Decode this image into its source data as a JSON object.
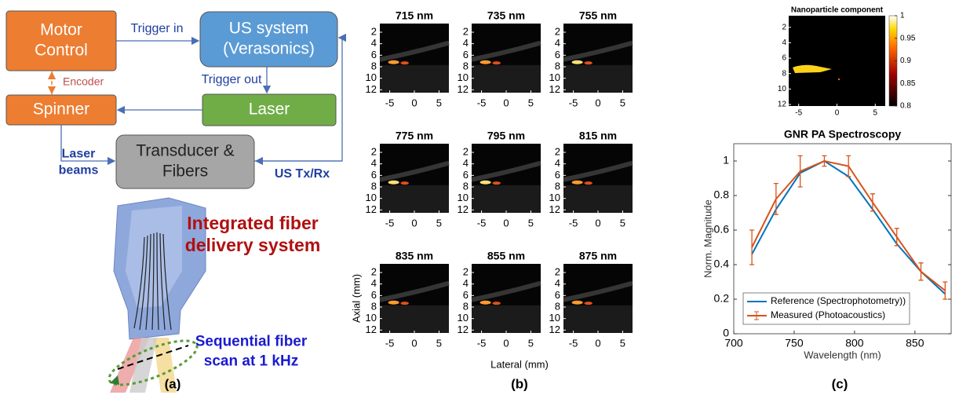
{
  "panel_labels": [
    "(a)",
    "(b)",
    "(c)"
  ],
  "diagram": {
    "nodes": [
      {
        "label": [
          "Motor",
          "Control"
        ]
      },
      {
        "label": [
          "US system",
          "(Verasonics)"
        ]
      },
      {
        "label": [
          "Spinner"
        ]
      },
      {
        "label": [
          "Laser"
        ]
      },
      {
        "label": [
          "Transducer &",
          "Fibers"
        ]
      }
    ],
    "edges": [
      {
        "label": [
          "Trigger in"
        ]
      },
      {
        "label": [
          "Trigger out"
        ]
      },
      {
        "label": [
          "Encoder"
        ]
      },
      {
        "label": [
          "Laser",
          "beams"
        ]
      },
      {
        "label": [
          "US Tx/Rx"
        ]
      }
    ],
    "captions": [
      [
        "Integrated fiber",
        "delivery system"
      ],
      [
        "Sequential fiber",
        "scan at 1 kHz"
      ]
    ]
  },
  "image_grid": {
    "titles": [
      "715 nm",
      "735 nm",
      "755 nm",
      "775 nm",
      "795 nm",
      "815 nm",
      "835 nm",
      "855 nm",
      "875 nm"
    ],
    "xlim": [
      -7,
      7
    ],
    "ylim": [
      0.5,
      12.5
    ],
    "xticks": [
      -5,
      0,
      5
    ],
    "yticks": [
      2,
      4,
      6,
      8,
      10,
      12
    ],
    "xlabel": "Lateral (mm)",
    "ylabel": "Axial (mm)"
  },
  "component_image": {
    "title": "Nanoparticle component",
    "xlim": [
      -6.3,
      6.3
    ],
    "ylim": [
      0.5,
      12.2
    ],
    "xticks": [
      -5,
      0,
      5
    ],
    "yticks": [
      2,
      4,
      6,
      8,
      10,
      12
    ],
    "colorbar": {
      "clim": [
        0.8,
        1
      ],
      "ticks": [
        0.8,
        0.85,
        0.9,
        0.95,
        1
      ]
    }
  },
  "chart_data": {
    "type": "line",
    "title": "GNR PA Spectroscopy",
    "x_label": "Wavelength (nm)",
    "y_label": "Norm. Magnitude",
    "x": [
      715,
      735,
      755,
      775,
      795,
      815,
      835,
      855,
      875
    ],
    "series": [
      {
        "name": "Reference (Spectrophotometry))",
        "color": "#0072bd",
        "values": [
          0.46,
          0.72,
          0.93,
          1.0,
          0.91,
          0.72,
          0.52,
          0.36,
          0.23
        ]
      },
      {
        "name": "Measured (Photoacoustics)",
        "color": "#d95319",
        "values": [
          0.5,
          0.78,
          0.94,
          1.0,
          0.97,
          0.76,
          0.56,
          0.36,
          0.25
        ],
        "error": [
          0.1,
          0.09,
          0.09,
          0.03,
          0.06,
          0.05,
          0.05,
          0.05,
          0.05
        ]
      }
    ],
    "xlim": [
      700,
      880
    ],
    "ylim": [
      0,
      1.1
    ],
    "xticks": [
      700,
      750,
      800,
      850
    ],
    "yticks": [
      0,
      0.2,
      0.4,
      0.6,
      0.8,
      1
    ],
    "legend": "lower-left"
  }
}
